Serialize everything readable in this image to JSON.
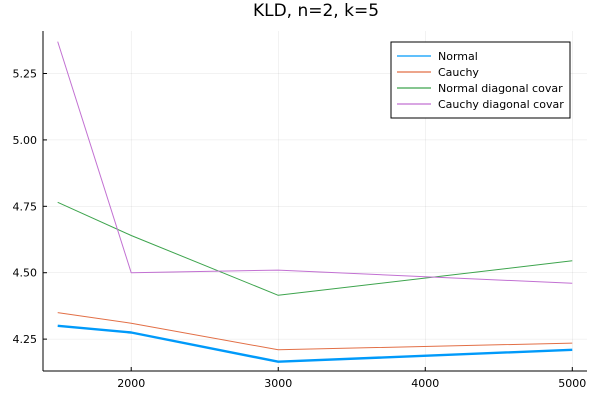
{
  "chart_data": {
    "type": "line",
    "title": "KLD, n=2, k=5",
    "xlabel": "",
    "ylabel": "",
    "xlim": [
      1400,
      5100
    ],
    "ylim": [
      4.13,
      5.41
    ],
    "xticks": [
      2000,
      3000,
      4000,
      5000
    ],
    "yticks": [
      4.25,
      4.5,
      4.75,
      5.0,
      5.25
    ],
    "xtick_labels": [
      "2000",
      "3000",
      "4000",
      "5000"
    ],
    "ytick_labels": [
      "4.25",
      "4.50",
      "4.75",
      "5.00",
      "5.25"
    ],
    "grid": true,
    "legend_position": "top-right",
    "x": [
      1500,
      2000,
      3000,
      5000
    ],
    "series": [
      {
        "name": "Normal",
        "color": "#009AFA",
        "values": [
          4.3,
          4.275,
          4.165,
          4.21
        ]
      },
      {
        "name": "Cauchy",
        "color": "#E26F46",
        "values": [
          4.35,
          4.31,
          4.21,
          4.235
        ]
      },
      {
        "name": "Normal diagonal covar",
        "color": "#3DA44D",
        "values": [
          4.765,
          4.64,
          4.415,
          4.545
        ]
      },
      {
        "name": "Cauchy diagonal covar",
        "color": "#C271D2",
        "values": [
          5.37,
          4.5,
          4.51,
          4.46
        ]
      }
    ]
  }
}
